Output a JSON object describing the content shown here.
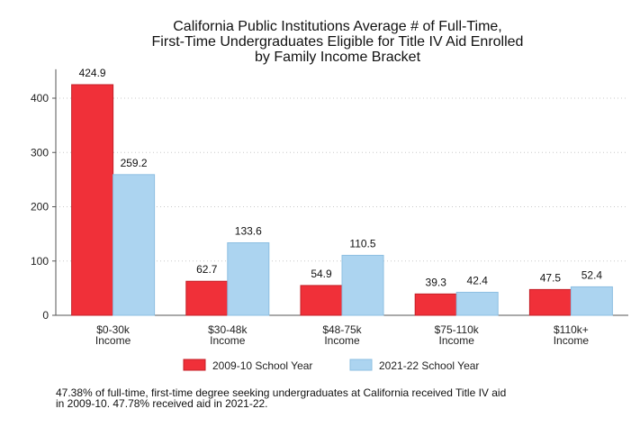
{
  "chart_data": {
    "type": "bar",
    "title_lines": [
      "California Public Institutions Average # of Full-Time,",
      "First-Time Undergraduates Eligible for Title IV Aid Enrolled",
      "by Family Income Bracket"
    ],
    "categories": [
      [
        "$0-30k",
        "Income"
      ],
      [
        "$30-48k",
        "Income"
      ],
      [
        "$48-75k",
        "Income"
      ],
      [
        "$75-110k",
        "Income"
      ],
      [
        "$110k+",
        "Income"
      ]
    ],
    "series": [
      {
        "name": "2009-10 School Year",
        "values": [
          424.9,
          62.7,
          54.9,
          39.3,
          47.5
        ],
        "color": "#f03039",
        "stroke": "#c41f27"
      },
      {
        "name": "2021-22 School Year",
        "values": [
          259.2,
          133.6,
          110.5,
          42.4,
          52.4
        ],
        "color": "#acd4f0",
        "stroke": "#8dbfe2"
      }
    ],
    "data_labels": [
      [
        "424.9",
        "62.7",
        "54.9",
        "39.3",
        "47.5"
      ],
      [
        "259.2",
        "133.6",
        "110.5",
        "42.4",
        "52.4"
      ]
    ],
    "yticks": [
      0,
      100,
      200,
      300,
      400
    ],
    "ylim": [
      0,
      440
    ],
    "xlabel": "",
    "ylabel": "",
    "grid": "horizontal-dotted",
    "legend": "bottom"
  },
  "footnote": {
    "line1": "47.38% of full-time, first-time degree seeking undergraduates at California received Title IV aid",
    "line2": "in 2009-10. 47.78% received aid in 2021-22."
  }
}
